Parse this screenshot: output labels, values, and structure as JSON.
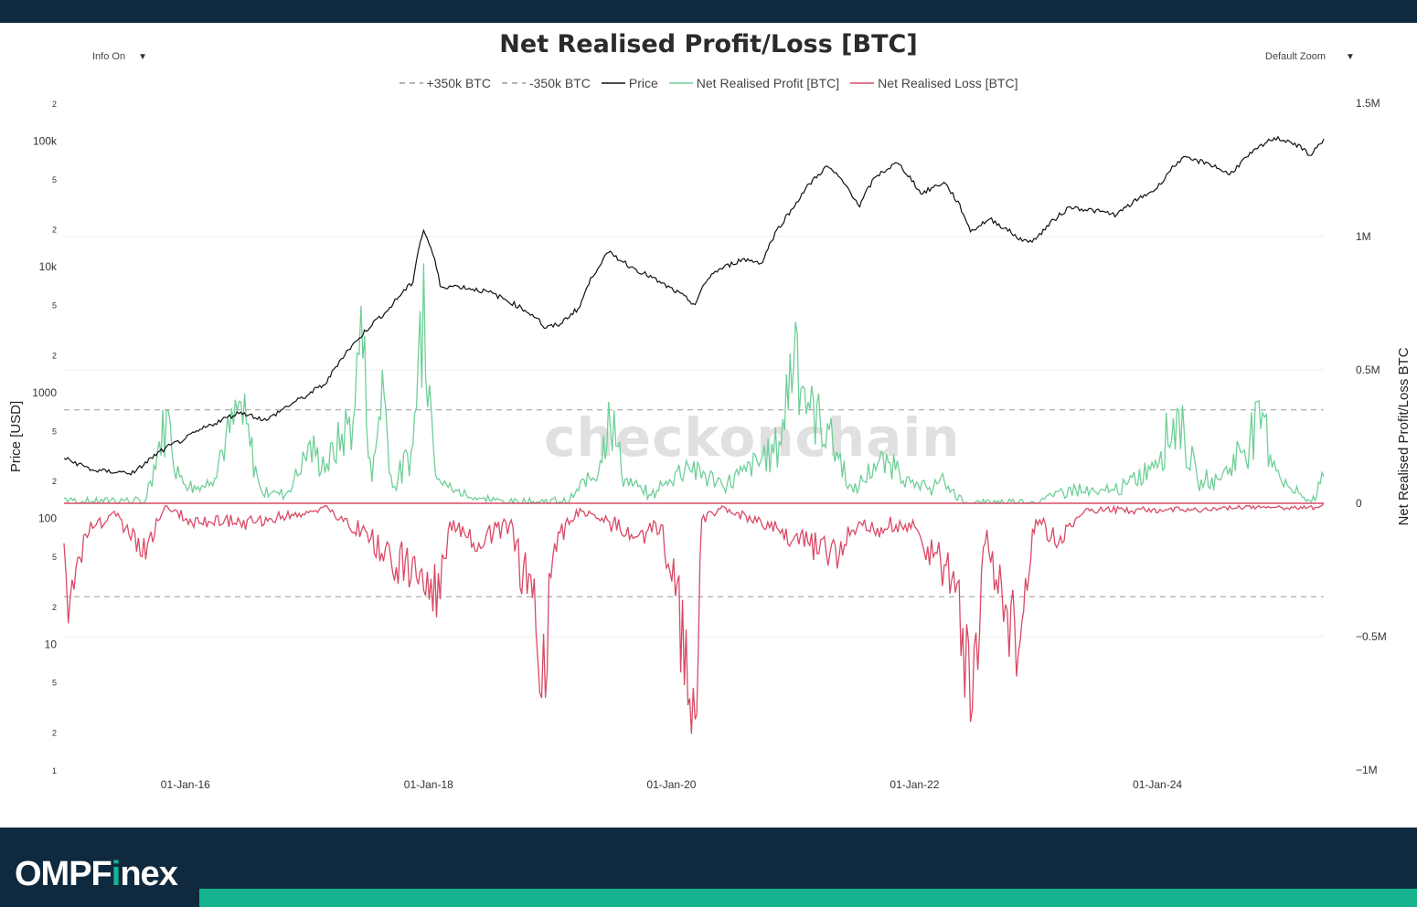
{
  "header": {
    "title": "Net Realised Profit/Loss [BTC]"
  },
  "controls": {
    "info": "Info On",
    "zoom": "Default Zoom",
    "caret": "▼"
  },
  "legend": [
    {
      "label": "+350k BTC",
      "style": "dashed",
      "color": "#9a9a9a"
    },
    {
      "label": "-350k BTC",
      "style": "dashed",
      "color": "#9a9a9a"
    },
    {
      "label": "Price",
      "style": "solid",
      "color": "#111111"
    },
    {
      "label": "Net Realised Profit [BTC]",
      "style": "solid",
      "color": "#6fcf97"
    },
    {
      "label": "Net Realised Loss [BTC]",
      "style": "solid",
      "color": "#d94a66"
    }
  ],
  "watermark": "checkonchain",
  "brand": {
    "pre": "OMPF",
    "accent": "i",
    "post": "nex"
  },
  "colors": {
    "price": "#111111",
    "profit": "#6fcf97",
    "loss": "#d94a66",
    "threshold": "#9a9a9a",
    "brand": "#0f2a3f",
    "accent": "#16b38f"
  },
  "chart_data": {
    "type": "line",
    "title": "Net Realised Profit/Loss [BTC]",
    "x_range": [
      "2015-01-01",
      "2025-05-15"
    ],
    "x_ticks": [
      "01-Jan-16",
      "01-Jan-18",
      "01-Jan-20",
      "01-Jan-22",
      "01-Jan-24"
    ],
    "y_left": {
      "label": "Price [USD]",
      "scale": "log",
      "range": [
        1,
        200000
      ],
      "ticks": [
        {
          "v": 1,
          "t": "1"
        },
        {
          "v": 2,
          "t": "2"
        },
        {
          "v": 5,
          "t": "5"
        },
        {
          "v": 10,
          "t": "10"
        },
        {
          "v": 20,
          "t": "2"
        },
        {
          "v": 50,
          "t": "5"
        },
        {
          "v": 100,
          "t": "100"
        },
        {
          "v": 200,
          "t": "2"
        },
        {
          "v": 500,
          "t": "5"
        },
        {
          "v": 1000,
          "t": "1000"
        },
        {
          "v": 2000,
          "t": "2"
        },
        {
          "v": 5000,
          "t": "5"
        },
        {
          "v": 10000,
          "t": "10k"
        },
        {
          "v": 20000,
          "t": "2"
        },
        {
          "v": 50000,
          "t": "5"
        },
        {
          "v": 100000,
          "t": "100k"
        },
        {
          "v": 200000,
          "t": "2"
        }
      ]
    },
    "y_right": {
      "label": "Net Realised Profit/Loss BTC",
      "range": [
        -1000000,
        1500000
      ],
      "ticks": [
        {
          "v": 1500000,
          "t": "1.5M"
        },
        {
          "v": 1000000,
          "t": "1M"
        },
        {
          "v": 500000,
          "t": "0.5M"
        },
        {
          "v": 0,
          "t": "0"
        },
        {
          "v": -500000,
          "t": "−0.5M"
        },
        {
          "v": -1000000,
          "t": "−1M"
        }
      ]
    },
    "thresholds": [
      350000,
      -350000
    ],
    "grid": true,
    "legend_position": "top-center",
    "series": [
      {
        "name": "Price",
        "axis": "left",
        "points": [
          [
            "2015-01-01",
            300
          ],
          [
            "2015-04-01",
            240
          ],
          [
            "2015-08-01",
            230
          ],
          [
            "2015-11-01",
            360
          ],
          [
            "2016-01-01",
            430
          ],
          [
            "2016-06-15",
            700
          ],
          [
            "2016-09-01",
            600
          ],
          [
            "2017-01-01",
            950
          ],
          [
            "2017-03-01",
            1200
          ],
          [
            "2017-06-01",
            2600
          ],
          [
            "2017-09-01",
            4500
          ],
          [
            "2017-11-15",
            7500
          ],
          [
            "2017-12-17",
            19500
          ],
          [
            "2018-02-05",
            7000
          ],
          [
            "2018-04-01",
            7000
          ],
          [
            "2018-07-01",
            6300
          ],
          [
            "2018-11-25",
            3900
          ],
          [
            "2018-12-15",
            3250
          ],
          [
            "2019-02-01",
            3500
          ],
          [
            "2019-04-01",
            4800
          ],
          [
            "2019-06-26",
            13000
          ],
          [
            "2019-09-01",
            10000
          ],
          [
            "2019-12-01",
            7400
          ],
          [
            "2020-03-12",
            5000
          ],
          [
            "2020-05-01",
            8800
          ],
          [
            "2020-08-01",
            11500
          ],
          [
            "2020-10-01",
            10800
          ],
          [
            "2020-12-31",
            29000
          ],
          [
            "2021-04-14",
            63000
          ],
          [
            "2021-07-20",
            30000
          ],
          [
            "2021-09-06",
            52000
          ],
          [
            "2021-11-10",
            67000
          ],
          [
            "2022-01-20",
            38000
          ],
          [
            "2022-03-30",
            47000
          ],
          [
            "2022-06-18",
            19000
          ],
          [
            "2022-08-15",
            24000
          ],
          [
            "2022-11-21",
            16000
          ],
          [
            "2023-01-01",
            16600
          ],
          [
            "2023-04-14",
            30000
          ],
          [
            "2023-09-01",
            26000
          ],
          [
            "2023-12-31",
            42000
          ],
          [
            "2024-03-14",
            73000
          ],
          [
            "2024-06-01",
            67000
          ],
          [
            "2024-08-05",
            54000
          ],
          [
            "2024-12-17",
            106000
          ],
          [
            "2025-02-01",
            100000
          ],
          [
            "2025-04-08",
            77000
          ],
          [
            "2025-05-15",
            104000
          ]
        ]
      },
      {
        "name": "Net Realised Profit [BTC]",
        "axis": "right",
        "points": [
          [
            "2015-01-01",
            20000
          ],
          [
            "2015-03-01",
            5000
          ],
          [
            "2015-06-01",
            15000
          ],
          [
            "2015-09-01",
            5000
          ],
          [
            "2015-11-05",
            350000
          ],
          [
            "2015-12-15",
            100000
          ],
          [
            "2016-03-01",
            60000
          ],
          [
            "2016-06-16",
            380000
          ],
          [
            "2016-08-15",
            50000
          ],
          [
            "2016-11-01",
            40000
          ],
          [
            "2017-01-04",
            220000
          ],
          [
            "2017-03-01",
            150000
          ],
          [
            "2017-05-25",
            370000
          ],
          [
            "2017-06-12",
            740000
          ],
          [
            "2017-07-15",
            80000
          ],
          [
            "2017-08-15",
            500000
          ],
          [
            "2017-09-15",
            60000
          ],
          [
            "2017-11-15",
            220000
          ],
          [
            "2017-12-17",
            900000
          ],
          [
            "2018-01-16",
            200000
          ],
          [
            "2018-03-01",
            60000
          ],
          [
            "2018-06-01",
            20000
          ],
          [
            "2018-09-01",
            5000
          ],
          [
            "2019-03-01",
            10000
          ],
          [
            "2019-06-01",
            160000
          ],
          [
            "2019-06-26",
            380000
          ],
          [
            "2019-08-15",
            90000
          ],
          [
            "2019-11-01",
            30000
          ],
          [
            "2020-02-15",
            160000
          ],
          [
            "2020-06-01",
            70000
          ],
          [
            "2020-08-01",
            120000
          ],
          [
            "2020-11-20",
            230000
          ],
          [
            "2021-01-08",
            680000
          ],
          [
            "2021-02-15",
            380000
          ],
          [
            "2021-04-14",
            300000
          ],
          [
            "2021-07-01",
            40000
          ],
          [
            "2021-09-01",
            150000
          ],
          [
            "2021-11-10",
            160000
          ],
          [
            "2022-01-01",
            60000
          ],
          [
            "2022-04-01",
            80000
          ],
          [
            "2022-06-01",
            0
          ],
          [
            "2023-01-15",
            10000
          ],
          [
            "2023-04-14",
            60000
          ],
          [
            "2023-07-01",
            40000
          ],
          [
            "2023-10-01",
            70000
          ],
          [
            "2023-12-05",
            140000
          ],
          [
            "2024-03-05",
            350000
          ],
          [
            "2024-05-01",
            80000
          ],
          [
            "2024-07-15",
            110000
          ],
          [
            "2024-11-12",
            340000
          ],
          [
            "2024-12-17",
            160000
          ],
          [
            "2025-02-01",
            60000
          ],
          [
            "2025-04-08",
            5000
          ],
          [
            "2025-05-15",
            100000
          ]
        ]
      },
      {
        "name": "Net Realised Loss [BTC]",
        "axis": "right",
        "points": [
          [
            "2015-01-01",
            -150000
          ],
          [
            "2015-01-14",
            -450000
          ],
          [
            "2015-03-01",
            -120000
          ],
          [
            "2015-06-01",
            -30000
          ],
          [
            "2015-08-24",
            -200000
          ],
          [
            "2015-11-01",
            -10000
          ],
          [
            "2016-01-15",
            -60000
          ],
          [
            "2016-08-02",
            -70000
          ],
          [
            "2017-03-01",
            -10000
          ],
          [
            "2018-02-05",
            -360000
          ],
          [
            "2018-03-01",
            -100000
          ],
          [
            "2018-06-01",
            -150000
          ],
          [
            "2018-09-01",
            -80000
          ],
          [
            "2018-11-20",
            -480000
          ],
          [
            "2018-12-07",
            -730000
          ],
          [
            "2019-01-15",
            -150000
          ],
          [
            "2019-04-01",
            -20000
          ],
          [
            "2019-09-25",
            -120000
          ],
          [
            "2019-12-01",
            -80000
          ],
          [
            "2020-03-12",
            -810000
          ],
          [
            "2020-04-01",
            -60000
          ],
          [
            "2020-06-01",
            -10000
          ],
          [
            "2021-05-19",
            -200000
          ],
          [
            "2021-07-01",
            -100000
          ],
          [
            "2021-12-04",
            -80000
          ],
          [
            "2022-01-24",
            -150000
          ],
          [
            "2022-05-09",
            -300000
          ],
          [
            "2022-06-18",
            -820000
          ],
          [
            "2022-08-01",
            -150000
          ],
          [
            "2022-11-09",
            -560000
          ],
          [
            "2023-01-01",
            -60000
          ],
          [
            "2023-03-10",
            -150000
          ],
          [
            "2023-06-01",
            -20000
          ],
          [
            "2024-04-01",
            -20000
          ],
          [
            "2024-08-05",
            -10000
          ],
          [
            "2025-04-08",
            -10000
          ],
          [
            "2025-05-15",
            0
          ]
        ]
      }
    ]
  }
}
